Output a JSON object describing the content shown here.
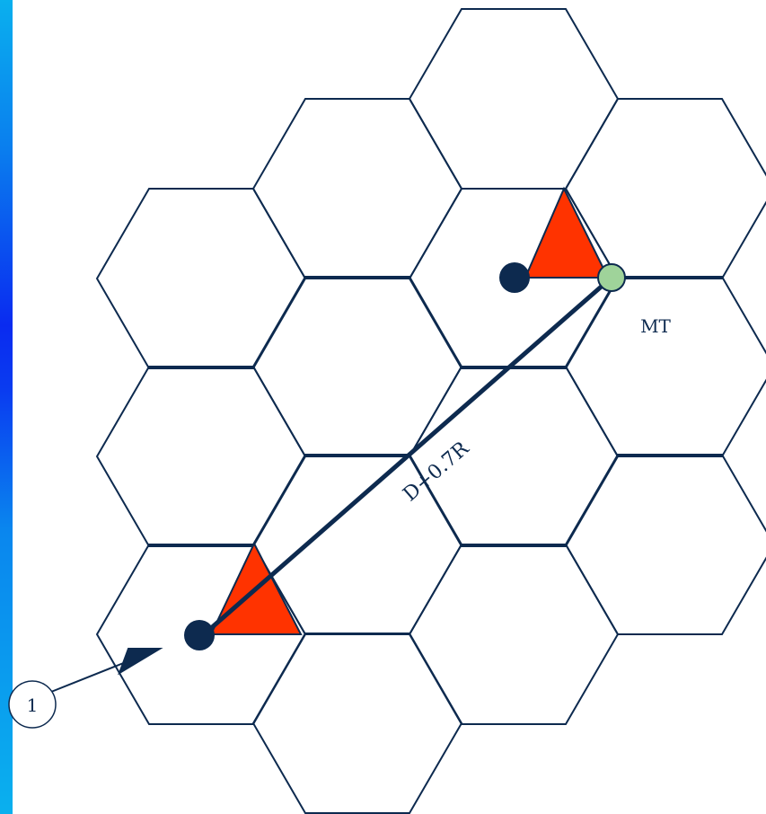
{
  "diagram": {
    "distance_label": "D+0.7R",
    "mobile_label": "MT",
    "callout_number": "1",
    "colors": {
      "cell_stroke": "#0d2a4f",
      "sector": "#ff3300",
      "base_station": "#0d2a4f",
      "mobile": "#9fd39a",
      "side_bar": "#0a3cf0"
    },
    "icons": {
      "base_station": "filled-circle",
      "mobile_terminal": "light-green-circle",
      "sector": "red-triangle"
    }
  }
}
